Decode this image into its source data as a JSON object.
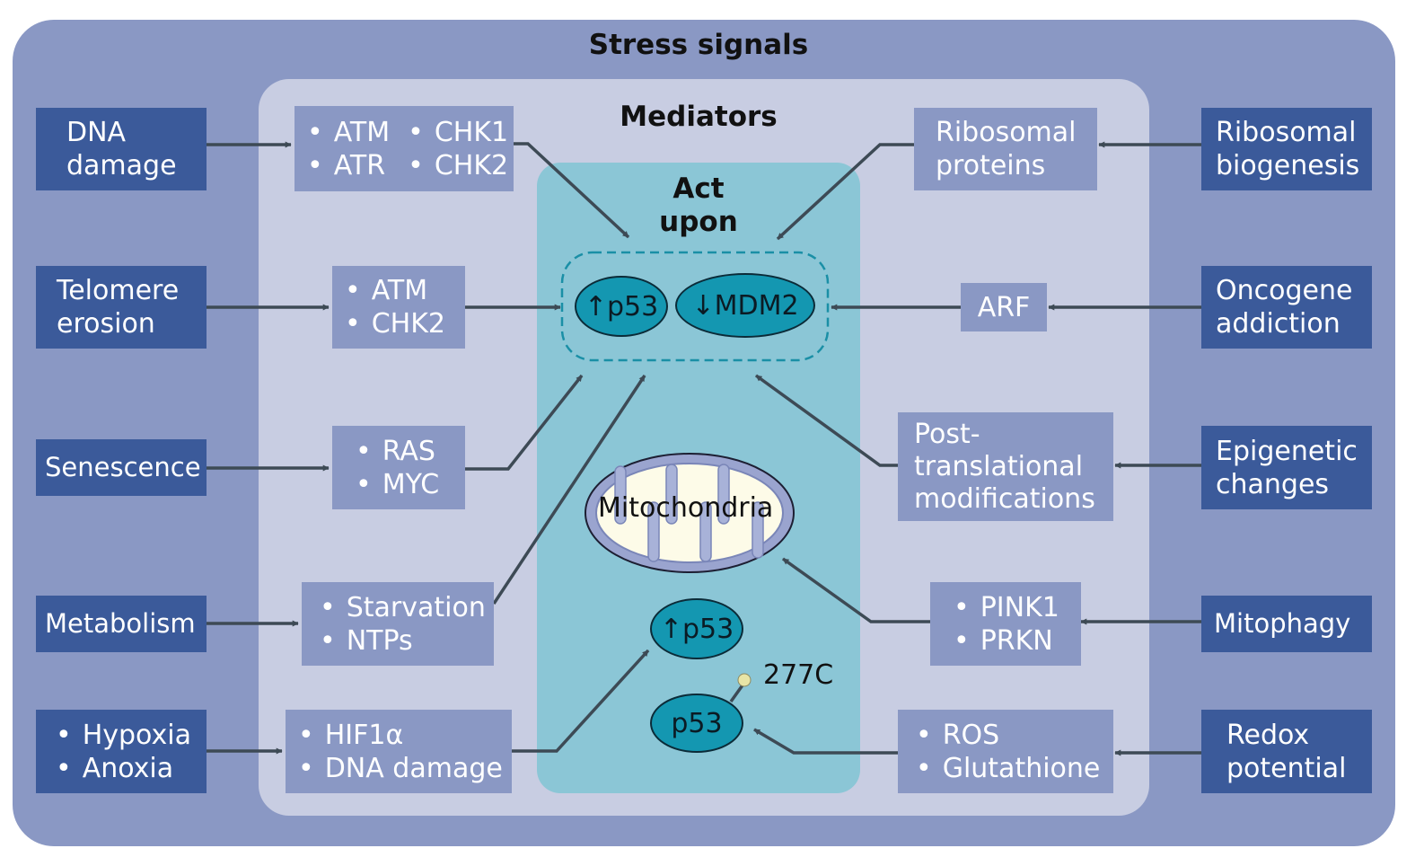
{
  "titles": {
    "stress_signals": "Stress signals",
    "mediators": "Mediators",
    "act_upon_line1": "Act",
    "act_upon_line2": "upon"
  },
  "signals_left": {
    "dna_damage": [
      "DNA",
      "damage"
    ],
    "telomere": [
      "Telomere",
      "erosion"
    ],
    "senescence": [
      "Senescence"
    ],
    "metabolism": [
      "Metabolism"
    ],
    "hypoxia": [
      "Hypoxia",
      "Anoxia"
    ]
  },
  "signals_right": {
    "ribosomal": [
      "Ribosomal",
      "biogenesis"
    ],
    "oncogene": [
      "Oncogene",
      "addiction"
    ],
    "epigenetic": [
      "Epigenetic",
      "changes"
    ],
    "mitophagy": [
      "Mitophagy"
    ],
    "redox": [
      "Redox",
      "potential"
    ]
  },
  "mediators_left": {
    "atm_atr_col1": [
      "ATM",
      "ATR"
    ],
    "atm_atr_col2": [
      "CHK1",
      "CHK2"
    ],
    "atm_chk2": [
      "ATM",
      "CHK2"
    ],
    "ras_myc": [
      "RAS",
      "MYC"
    ],
    "starvation": [
      "Starvation",
      "NTPs"
    ],
    "hif": [
      "HIF1α",
      "DNA damage"
    ]
  },
  "mediators_right": {
    "ribosomal_proteins": [
      "Ribosomal",
      "proteins"
    ],
    "arf": [
      "ARF"
    ],
    "ptm": [
      "Post-",
      "translational",
      "modifications"
    ],
    "pink": [
      "PINK1",
      "PRKN"
    ],
    "ros": [
      "ROS",
      "Glutathione"
    ]
  },
  "targets": {
    "p53_up": "↑p53",
    "mdm2_down": "↓MDM2",
    "mitochondria": "Mitochondria",
    "p53_up_lower": "↑p53",
    "p53": "p53",
    "mutation": "277C"
  },
  "colors": {
    "outer": "#8a98c4",
    "inner": "#c8cde2",
    "act_upon": "#8bc6d6",
    "signal_box": "#3b5a9a",
    "mediator_box": "#8a98c4",
    "p53_oval": "#1497b1",
    "arrow": "#3d4a55",
    "dashed_outline": "#1a8fa6"
  }
}
